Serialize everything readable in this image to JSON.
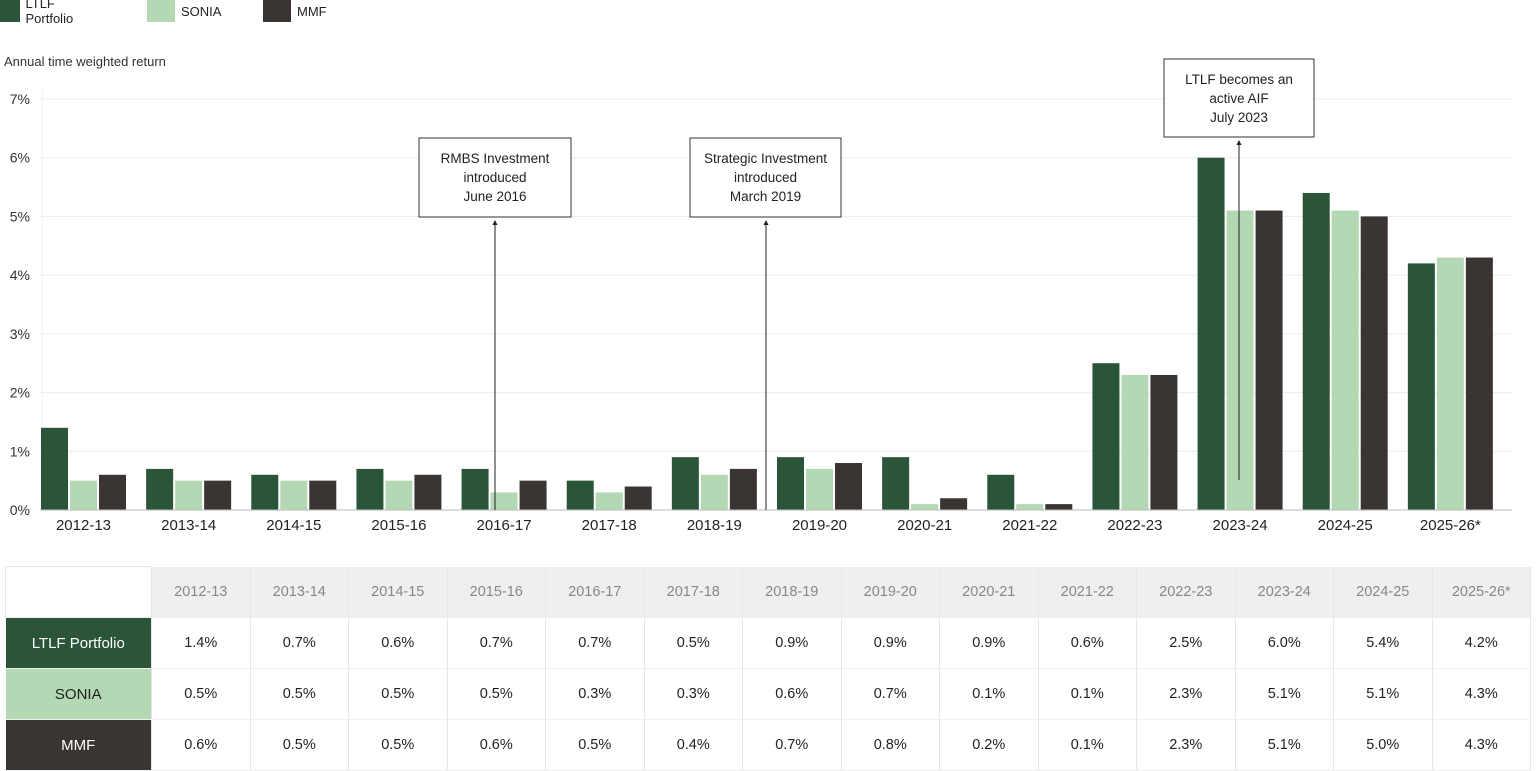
{
  "legend": [
    {
      "name": "LTLF Portfolio",
      "color": "#2b5539"
    },
    {
      "name": "SONIA",
      "color": "#b3d8b3"
    },
    {
      "name": "MMF",
      "color": "#3a3533"
    }
  ],
  "chart_data": {
    "type": "bar",
    "title": "",
    "xlabel": "",
    "ylabel": "Annual time weighted return",
    "ylim": [
      0,
      7
    ],
    "yticks": [
      "0%",
      "1%",
      "2%",
      "3%",
      "4%",
      "5%",
      "6%",
      "7%"
    ],
    "grid": true,
    "legend_position": "top-left",
    "categories": [
      "2012-13",
      "2013-14",
      "2014-15",
      "2015-16",
      "2016-17",
      "2017-18",
      "2018-19",
      "2019-20",
      "2020-21",
      "2021-22",
      "2022-23",
      "2023-24",
      "2024-25",
      "2025-26*"
    ],
    "series": [
      {
        "name": "LTLF Portfolio",
        "color": "#2b5539",
        "values": [
          1.4,
          0.7,
          0.6,
          0.7,
          0.7,
          0.5,
          0.9,
          0.9,
          0.9,
          0.6,
          2.5,
          6.0,
          5.4,
          4.2
        ]
      },
      {
        "name": "SONIA",
        "color": "#b3d8b3",
        "values": [
          0.5,
          0.5,
          0.5,
          0.5,
          0.3,
          0.3,
          0.6,
          0.7,
          0.1,
          0.1,
          2.3,
          5.1,
          5.1,
          4.3
        ]
      },
      {
        "name": "MMF",
        "color": "#3a3533",
        "values": [
          0.6,
          0.5,
          0.5,
          0.6,
          0.5,
          0.4,
          0.7,
          0.8,
          0.2,
          0.1,
          2.3,
          5.1,
          5.0,
          4.3
        ]
      }
    ],
    "annotations": [
      {
        "category": "2016-17",
        "lines": [
          "RMBS Investment",
          "introduced",
          "June 2016"
        ]
      },
      {
        "category": "2018-19",
        "lines": [
          "Strategic Investment",
          "introduced",
          "March 2019"
        ]
      },
      {
        "category": "2023-24",
        "lines": [
          "LTLF becomes an",
          "active AIF",
          "July 2023"
        ]
      }
    ]
  },
  "table": {
    "headers": [
      "2012-13",
      "2013-14",
      "2014-15",
      "2015-16",
      "2016-17",
      "2017-18",
      "2018-19",
      "2019-20",
      "2020-21",
      "2021-22",
      "2022-23",
      "2023-24",
      "2024-25",
      "2025-26*"
    ],
    "rows": [
      {
        "label": "LTLF Portfolio",
        "cells": [
          "1.4%",
          "0.7%",
          "0.6%",
          "0.7%",
          "0.7%",
          "0.5%",
          "0.9%",
          "0.9%",
          "0.9%",
          "0.6%",
          "2.5%",
          "6.0%",
          "5.4%",
          "4.2%"
        ]
      },
      {
        "label": "SONIA",
        "cells": [
          "0.5%",
          "0.5%",
          "0.5%",
          "0.5%",
          "0.3%",
          "0.3%",
          "0.6%",
          "0.7%",
          "0.1%",
          "0.1%",
          "2.3%",
          "5.1%",
          "5.1%",
          "4.3%"
        ]
      },
      {
        "label": "MMF",
        "cells": [
          "0.6%",
          "0.5%",
          "0.5%",
          "0.6%",
          "0.5%",
          "0.4%",
          "0.7%",
          "0.8%",
          "0.2%",
          "0.1%",
          "2.3%",
          "5.1%",
          "5.0%",
          "4.3%"
        ]
      }
    ]
  }
}
